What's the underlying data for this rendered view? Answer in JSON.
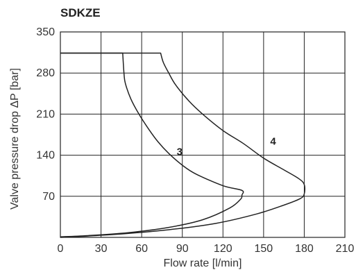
{
  "chart_data": {
    "type": "line",
    "title": "SDKZE",
    "xlabel": "Flow rate [l/min]",
    "ylabel": "Valve pressure drop ΔP [bar]",
    "xlim": [
      0,
      210
    ],
    "ylim": [
      0,
      350
    ],
    "x_ticks": [
      "0",
      "30",
      "60",
      "90",
      "120",
      "150",
      "180",
      "210"
    ],
    "y_ticks": [
      "70",
      "140",
      "210",
      "280",
      "350"
    ],
    "grid": true,
    "line_color": "#222222",
    "series": [
      {
        "name": "3",
        "x": [
          0,
          20,
          50,
          80,
          105,
          125,
          133,
          134,
          134,
          120,
          100,
          90,
          80,
          72,
          65,
          58,
          52,
          48,
          47,
          46,
          0
        ],
        "y": [
          1,
          3,
          8,
          17,
          30,
          50,
          65,
          72,
          80,
          88,
          108,
          123,
          143,
          163,
          185,
          210,
          236,
          262,
          278,
          314,
          314
        ]
      },
      {
        "name": "4",
        "x": [
          0,
          40,
          80,
          115,
          145,
          165,
          177,
          180,
          180,
          176,
          165,
          150,
          135,
          120,
          105,
          95,
          85,
          80,
          76,
          74,
          0
        ],
        "y": [
          0,
          5,
          13,
          24,
          40,
          55,
          66,
          74,
          90,
          100,
          115,
          135,
          160,
          182,
          210,
          232,
          260,
          280,
          298,
          314,
          314
        ]
      }
    ]
  }
}
